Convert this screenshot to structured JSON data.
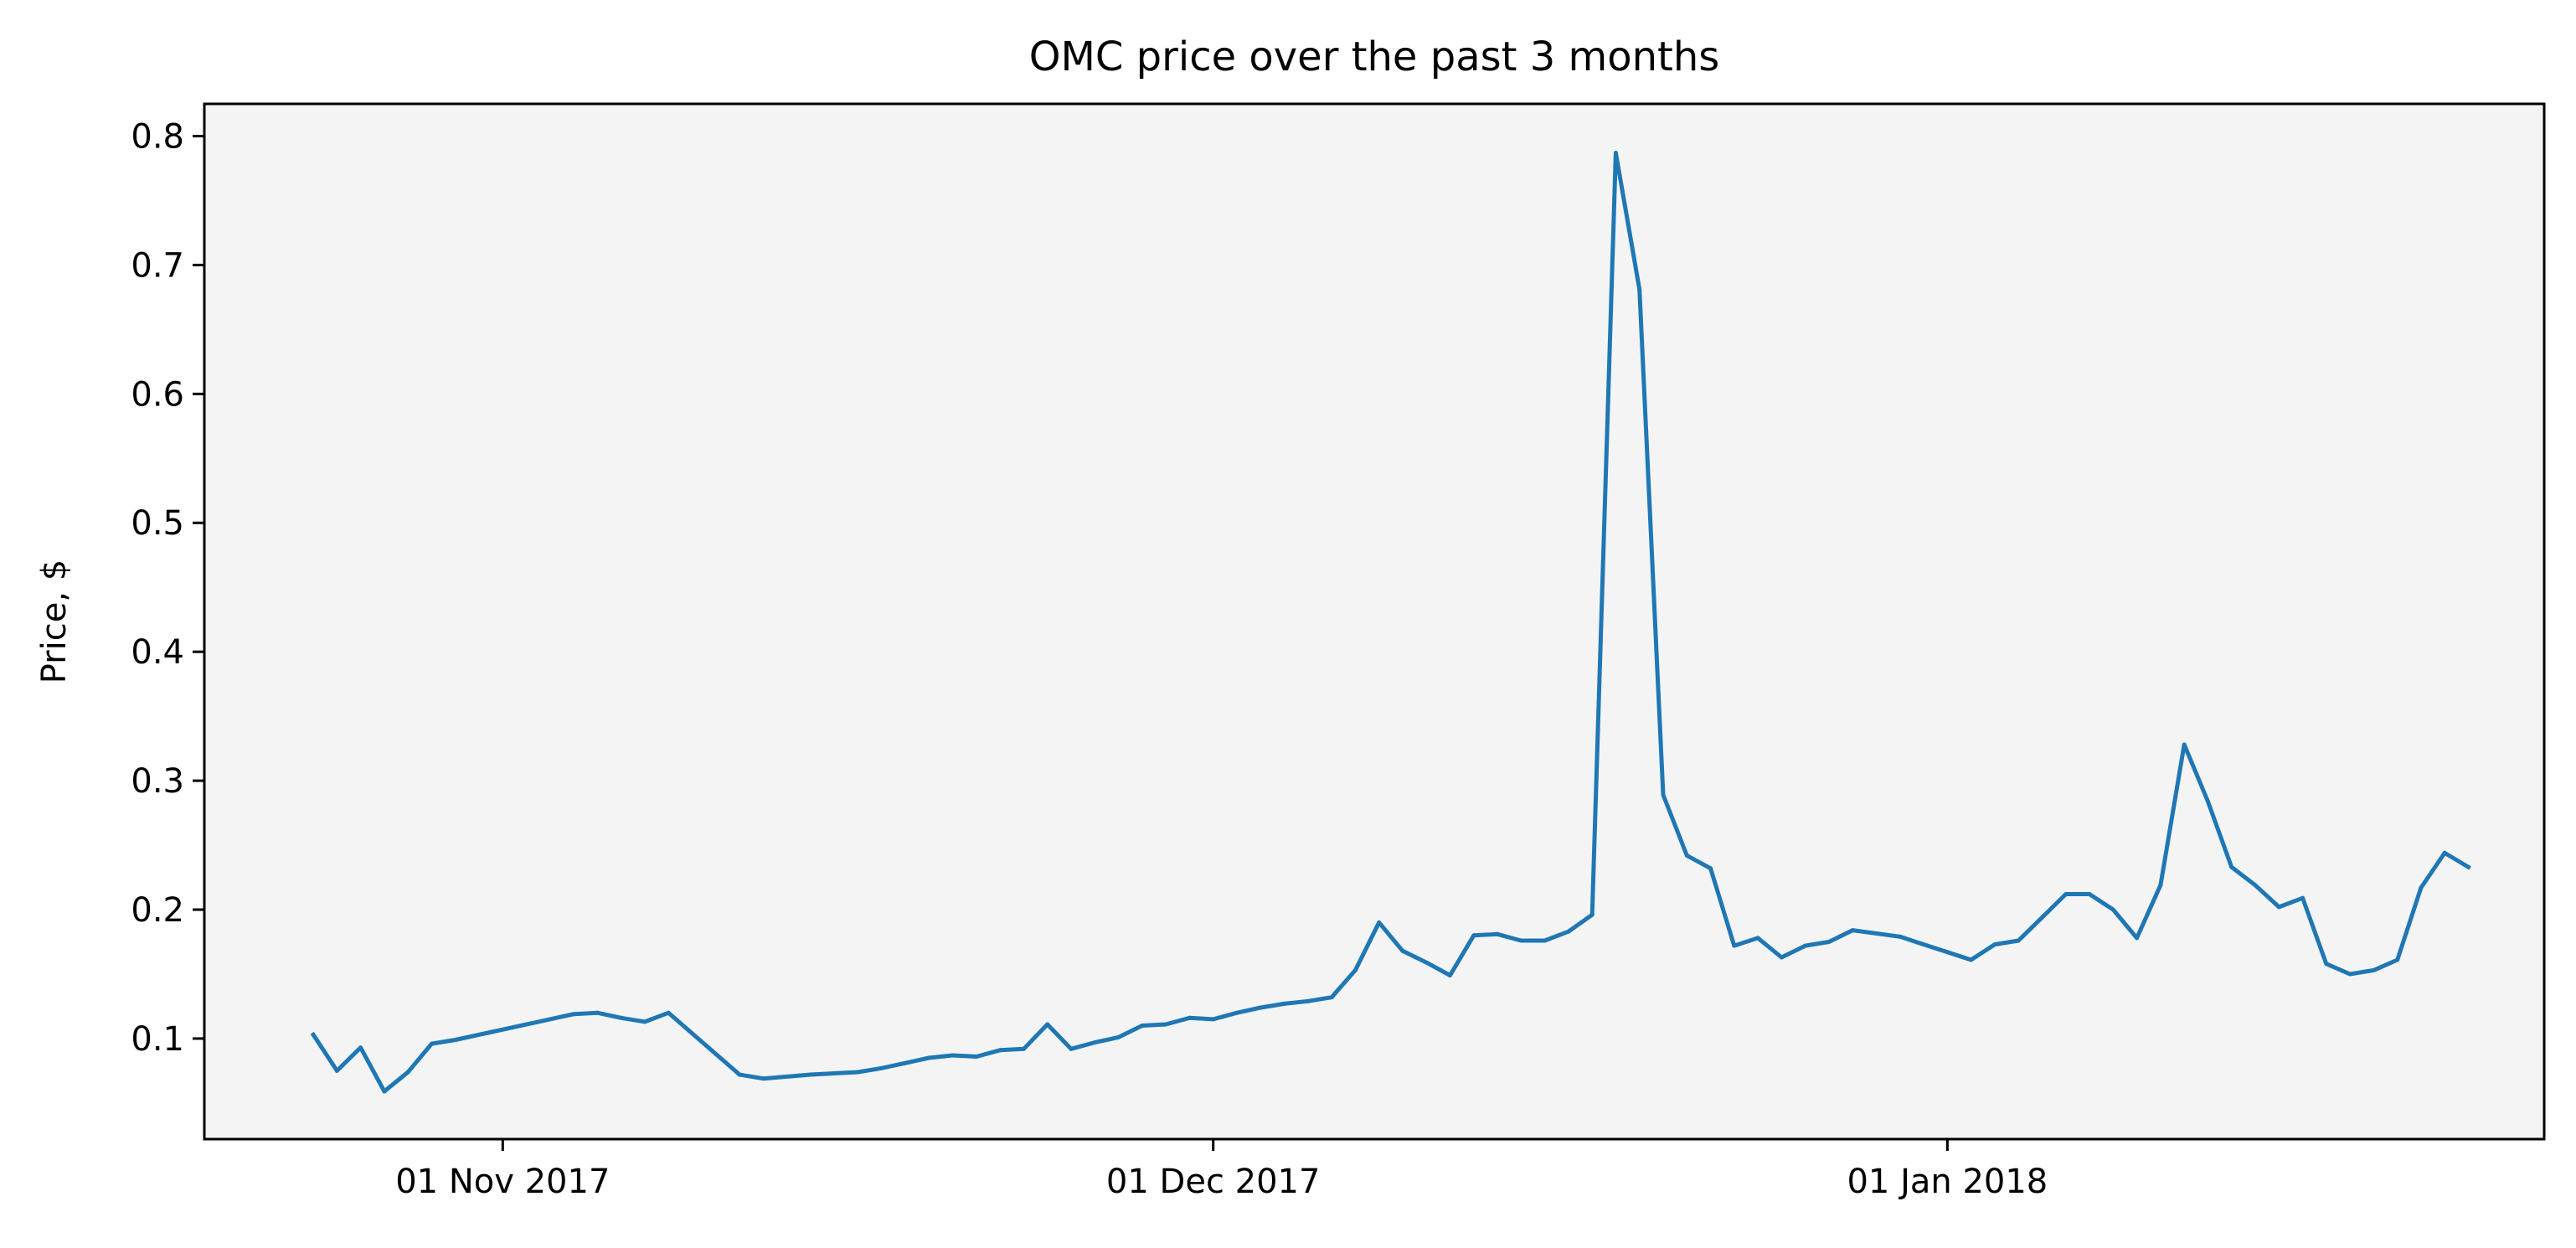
{
  "chart_data": {
    "type": "line",
    "title": "OMC price over the past 3 months",
    "xlabel": "",
    "ylabel": "Price, $",
    "ylim": [
      0.022,
      0.825
    ],
    "y_ticks": [
      0.1,
      0.2,
      0.3,
      0.4,
      0.5,
      0.6,
      0.7,
      0.8
    ],
    "y_tick_labels": [
      "0.1",
      "0.2",
      "0.3",
      "0.4",
      "0.5",
      "0.6",
      "0.7",
      "0.8"
    ],
    "xlim_days": [
      -12.6,
      86.2
    ],
    "x_unit": "days since 01 Nov 2017",
    "x_ticks": [
      0,
      30,
      61
    ],
    "x_tick_labels": [
      "01 Nov 2017",
      "01 Dec 2017",
      "01 Jan 2018"
    ],
    "grid": false,
    "colors": {
      "line": "#1f77b4",
      "plot_background": "#f4f4f4",
      "axes": "#000000"
    },
    "series": [
      {
        "name": "OMC price",
        "x": [
          -8,
          -7,
          -6,
          -5,
          -4,
          -3,
          -2,
          3,
          4,
          5,
          6,
          7,
          10,
          11,
          13,
          15,
          16,
          17,
          18,
          19,
          20,
          21,
          22,
          23,
          24,
          25,
          26,
          27,
          28,
          29,
          30,
          31,
          32,
          33,
          34,
          35,
          36,
          37,
          38,
          39,
          40,
          41,
          42,
          43,
          44,
          45,
          46,
          47,
          48,
          49,
          50,
          51,
          52,
          53,
          54,
          55,
          56,
          57,
          59,
          60,
          61,
          62,
          63,
          64,
          65,
          66,
          67,
          68,
          69,
          70,
          71,
          72,
          73,
          74,
          75,
          76,
          77,
          78,
          79,
          80,
          81,
          82,
          83
        ],
        "y": [
          0.103,
          0.075,
          0.093,
          0.059,
          0.074,
          0.096,
          0.099,
          0.119,
          0.12,
          0.116,
          0.113,
          0.12,
          0.072,
          0.069,
          0.072,
          0.074,
          0.077,
          0.081,
          0.085,
          0.087,
          0.086,
          0.091,
          0.092,
          0.111,
          0.092,
          0.097,
          0.101,
          0.11,
          0.111,
          0.116,
          0.115,
          0.12,
          0.124,
          0.127,
          0.129,
          0.132,
          0.153,
          0.19,
          0.168,
          0.159,
          0.149,
          0.18,
          0.181,
          0.176,
          0.176,
          0.183,
          0.196,
          0.787,
          0.681,
          0.289,
          0.242,
          0.232,
          0.172,
          0.178,
          0.163,
          0.172,
          0.175,
          0.184,
          0.179,
          0.173,
          0.167,
          0.161,
          0.173,
          0.176,
          0.194,
          0.212,
          0.212,
          0.2,
          0.178,
          0.219,
          0.328,
          0.284,
          0.233,
          0.219,
          0.202,
          0.209,
          0.158,
          0.15,
          0.153,
          0.161,
          0.217,
          0.244,
          0.233
        ]
      }
    ]
  }
}
